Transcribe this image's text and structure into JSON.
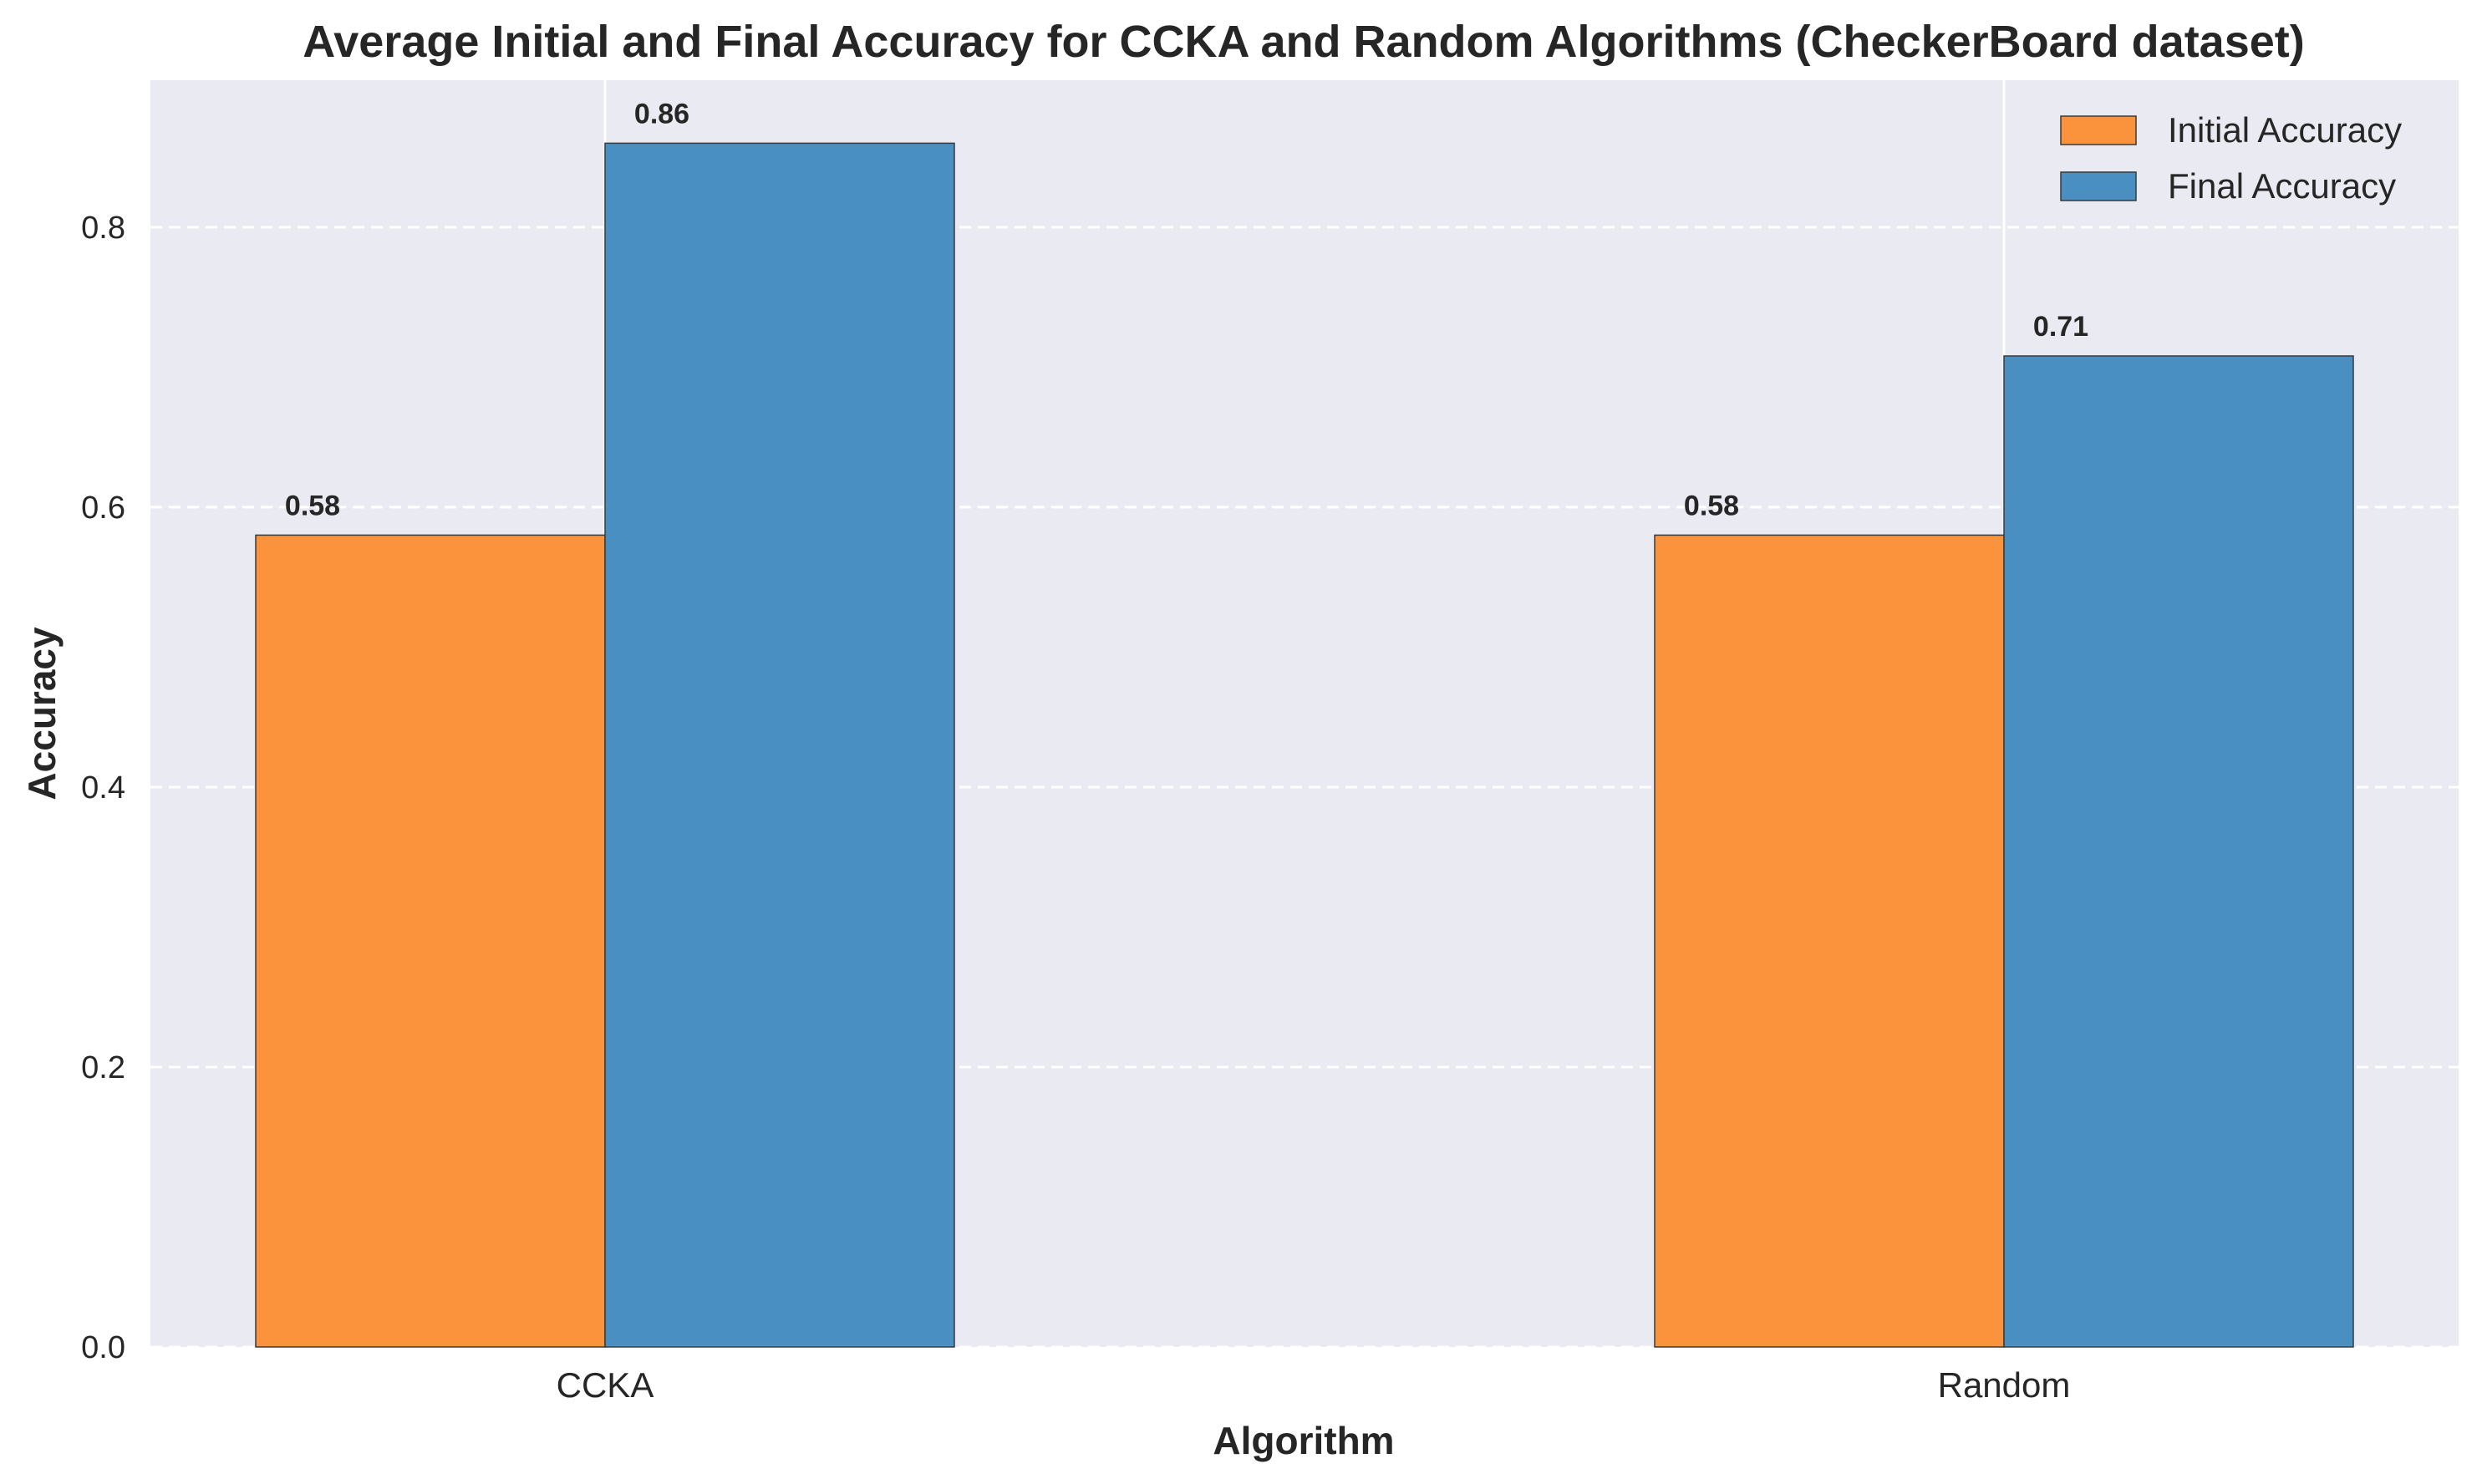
{
  "chart_data": {
    "type": "bar",
    "title": "Average Initial and Final Accuracy for CCKA and Random Algorithms (CheckerBoard dataset)",
    "xlabel": "Algorithm",
    "ylabel": "Accuracy",
    "categories": [
      "CCKA",
      "Random"
    ],
    "series": [
      {
        "name": "Initial Accuracy",
        "values": [
          0.58,
          0.58
        ],
        "labels": [
          "0.58",
          "0.58"
        ],
        "color": "#fb923c"
      },
      {
        "name": "Final Accuracy",
        "values": [
          0.86,
          0.708
        ],
        "labels": [
          "0.86",
          "0.71"
        ],
        "color": "#4a8fc2"
      }
    ],
    "ylim": [
      0,
      0.905
    ],
    "yticks": [
      "0.0",
      "0.2",
      "0.4",
      "0.6",
      "0.8"
    ],
    "ytick_values": [
      0,
      0.2,
      0.4,
      0.6,
      0.8
    ],
    "grid": true,
    "legend_position": "top-right",
    "colors": {
      "plot_background": "#eaeaf2",
      "grid": "#ffffff",
      "bar_edge": "#3a3a3a"
    }
  }
}
